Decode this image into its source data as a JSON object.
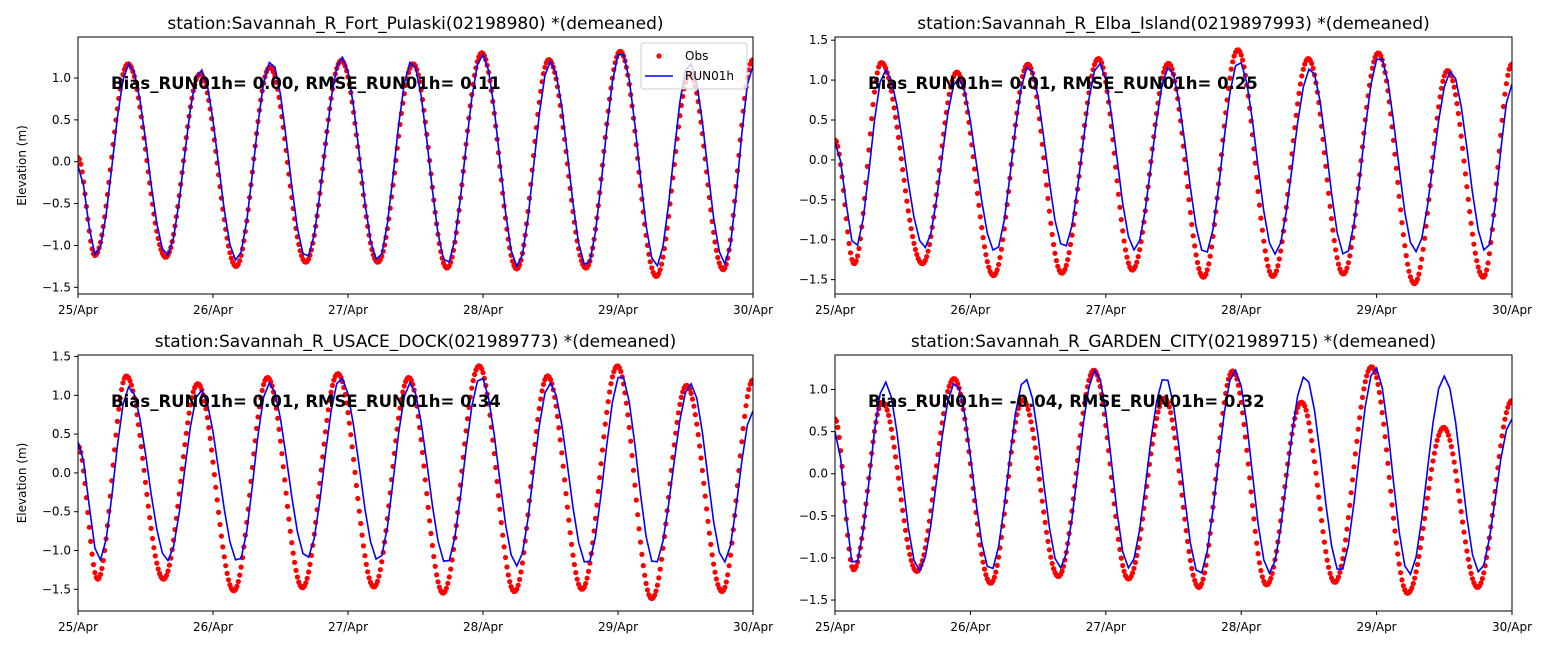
{
  "chart_data": [
    {
      "type": "line",
      "title": "station:Savannah_R_Fort_Pulaski(02198980) *(demeaned)",
      "xlabel": "",
      "ylabel": "Elevation (m)",
      "x_unit": "hours since 25/Apr 00:00",
      "xlim": [
        0,
        120
      ],
      "ylim": [
        -1.58,
        1.49
      ],
      "xticks": [
        "25/Apr",
        "26/Apr",
        "27/Apr",
        "28/Apr",
        "29/Apr",
        "30/Apr"
      ],
      "yticks": [
        "1.0",
        "0.5",
        "0.0",
        "−0.5",
        "−1.0",
        "−1.5"
      ],
      "ytick_values": [
        1.0,
        0.5,
        0.0,
        -0.5,
        -1.0,
        -1.5
      ],
      "annotation": "Bias_RUN01h=  0.00, RMSE_RUN01h=  0.11",
      "legend": {
        "placement": "top-right",
        "entries": [
          "Obs",
          "RUN01h"
        ]
      },
      "series": [
        {
          "name": "Obs",
          "style": "points",
          "color": "#ff0000",
          "extremes_t": [
            0,
            3.0,
            8.9,
            15.6,
            21.7,
            28.1,
            34.1,
            40.5,
            46.8,
            53.3,
            59.6,
            65.6,
            71.8,
            78.0,
            83.7,
            90.3,
            96.4,
            102.8,
            108.8,
            114.7,
            120
          ],
          "extremes_v": [
            0.05,
            -1.12,
            1.17,
            -1.14,
            1.05,
            -1.25,
            1.13,
            -1.2,
            1.21,
            -1.2,
            1.17,
            -1.27,
            1.3,
            -1.28,
            1.22,
            -1.27,
            1.32,
            -1.37,
            1.05,
            -1.29,
            1.22
          ]
        },
        {
          "name": "RUN01h",
          "style": "line",
          "color": "#0000ff",
          "extremes_t": [
            0,
            3.2,
            9.1,
            15.8,
            21.8,
            28.2,
            34.3,
            40.6,
            46.9,
            53.3,
            59.3,
            65.6,
            71.9,
            78.1,
            84.0,
            90.4,
            96.5,
            102.8,
            108.7,
            115.0,
            120
          ],
          "extremes_v": [
            -0.05,
            -1.12,
            1.17,
            -1.12,
            1.1,
            -1.18,
            1.2,
            -1.15,
            1.25,
            -1.18,
            1.2,
            -1.22,
            1.28,
            -1.25,
            1.2,
            -1.25,
            1.32,
            -1.25,
            1.18,
            -1.22,
            1.15
          ]
        }
      ]
    },
    {
      "type": "line",
      "title": "station:Savannah_R_Elba_Island(0219897993) *(demeaned)",
      "xlabel": "",
      "ylabel": "",
      "x_unit": "hours since 25/Apr 00:00",
      "xlim": [
        0,
        120
      ],
      "ylim": [
        -1.68,
        1.54
      ],
      "xticks": [
        "25/Apr",
        "26/Apr",
        "27/Apr",
        "28/Apr",
        "29/Apr",
        "30/Apr"
      ],
      "yticks": [
        "1.5",
        "1.0",
        "0.5",
        "0.0",
        "−0.5",
        "−1.0",
        "−1.5"
      ],
      "ytick_values": [
        1.5,
        1.0,
        0.5,
        0.0,
        -0.5,
        -1.0,
        -1.5
      ],
      "annotation": "Bias_RUN01h=  0.01, RMSE_RUN01h=  0.25",
      "series": [
        {
          "name": "Obs",
          "style": "points",
          "color": "#ff0000",
          "extremes_t": [
            0,
            3.4,
            8.2,
            15.5,
            21.6,
            28.1,
            34.2,
            40.2,
            46.7,
            52.7,
            59.1,
            65.3,
            71.4,
            77.6,
            83.9,
            90.1,
            96.3,
            102.7,
            108.6,
            114.9,
            120
          ],
          "extremes_v": [
            0.25,
            -1.3,
            1.22,
            -1.3,
            1.1,
            -1.45,
            1.2,
            -1.42,
            1.27,
            -1.38,
            1.21,
            -1.47,
            1.38,
            -1.46,
            1.27,
            -1.43,
            1.34,
            -1.55,
            1.12,
            -1.47,
            1.2
          ]
        },
        {
          "name": "RUN01h",
          "style": "line",
          "color": "#0000ff",
          "extremes_t": [
            0,
            3.6,
            8.9,
            15.9,
            21.8,
            28.4,
            34.3,
            40.6,
            46.8,
            53.1,
            59.2,
            65.6,
            71.6,
            78.0,
            84.3,
            90.4,
            96.5,
            102.9,
            109.2,
            115.4,
            120
          ],
          "extremes_v": [
            0.22,
            -1.1,
            1.13,
            -1.1,
            1.03,
            -1.15,
            1.17,
            -1.1,
            1.21,
            -1.13,
            1.16,
            -1.18,
            1.24,
            -1.18,
            1.15,
            -1.2,
            1.3,
            -1.15,
            1.11,
            -1.15,
            0.95
          ]
        }
      ]
    },
    {
      "type": "line",
      "title": "station:Savannah_R_USACE_DOCK(021989773) *(demeaned)",
      "xlabel": "",
      "ylabel": "Elevation (m)",
      "x_unit": "hours since 25/Apr 00:00",
      "xlim": [
        0,
        120
      ],
      "ylim": [
        -1.78,
        1.52
      ],
      "xticks": [
        "25/Apr",
        "26/Apr",
        "27/Apr",
        "28/Apr",
        "29/Apr",
        "30/Apr"
      ],
      "yticks": [
        "1.5",
        "1.0",
        "0.5",
        "0.0",
        "−0.5",
        "−1.0",
        "−1.5"
      ],
      "ytick_values": [
        1.5,
        1.0,
        0.5,
        0.0,
        -0.5,
        -1.0,
        -1.5
      ],
      "annotation": "Bias_RUN01h=  0.01, RMSE_RUN01h=  0.34",
      "series": [
        {
          "name": "Obs",
          "style": "points",
          "color": "#ff0000",
          "extremes_t": [
            0,
            3.5,
            8.6,
            15.2,
            21.3,
            27.7,
            33.7,
            39.9,
            46.2,
            52.6,
            58.8,
            64.9,
            71.3,
            77.6,
            83.5,
            89.6,
            95.9,
            102.0,
            108.2,
            114.5,
            120
          ],
          "extremes_v": [
            0.35,
            -1.37,
            1.25,
            -1.37,
            1.15,
            -1.52,
            1.23,
            -1.48,
            1.28,
            -1.47,
            1.23,
            -1.55,
            1.38,
            -1.53,
            1.25,
            -1.5,
            1.38,
            -1.62,
            1.13,
            -1.53,
            1.2
          ]
        },
        {
          "name": "RUN01h",
          "style": "line",
          "color": "#0000ff",
          "extremes_t": [
            0,
            3.8,
            9.1,
            15.9,
            21.8,
            28.5,
            34.0,
            40.7,
            46.7,
            53.4,
            59.0,
            65.5,
            71.6,
            78.0,
            83.9,
            90.5,
            96.5,
            102.5,
            108.9,
            114.9,
            120
          ],
          "extremes_v": [
            0.4,
            -1.13,
            1.11,
            -1.13,
            1.07,
            -1.15,
            1.16,
            -1.1,
            1.23,
            -1.13,
            1.16,
            -1.17,
            1.24,
            -1.2,
            1.16,
            -1.18,
            1.27,
            -1.18,
            1.15,
            -1.15,
            0.8
          ]
        }
      ]
    },
    {
      "type": "line",
      "title": "station:Savannah_R_GARDEN_CITY(021989715) *(demeaned)",
      "xlabel": "",
      "ylabel": "",
      "x_unit": "hours since 25/Apr 00:00",
      "xlim": [
        0,
        120
      ],
      "ylim": [
        -1.63,
        1.41
      ],
      "xticks": [
        "25/Apr",
        "26/Apr",
        "27/Apr",
        "28/Apr",
        "29/Apr",
        "30/Apr"
      ],
      "yticks": [
        "1.0",
        "0.5",
        "0.0",
        "−0.5",
        "−1.0",
        "−1.5"
      ],
      "ytick_values": [
        1.0,
        0.5,
        0.0,
        -0.5,
        -1.0,
        -1.5
      ],
      "annotation": "Bias_RUN01h= -0.04, RMSE_RUN01h=  0.32",
      "series": [
        {
          "name": "Obs",
          "style": "points",
          "color": "#ff0000",
          "extremes_t": [
            0,
            3.3,
            8.4,
            14.5,
            21.1,
            27.6,
            33.3,
            39.6,
            45.9,
            52.0,
            58.4,
            64.5,
            70.5,
            76.5,
            82.7,
            88.6,
            95.1,
            101.5,
            107.9,
            113.9,
            120
          ],
          "extremes_v": [
            0.65,
            -1.14,
            0.85,
            -1.16,
            1.13,
            -1.3,
            0.88,
            -1.22,
            1.23,
            -1.25,
            0.9,
            -1.35,
            1.22,
            -1.32,
            0.85,
            -1.29,
            1.27,
            -1.42,
            0.55,
            -1.35,
            0.87
          ]
        },
        {
          "name": "RUN01h",
          "style": "line",
          "color": "#0000ff",
          "extremes_t": [
            0,
            3.4,
            8.9,
            14.9,
            21.3,
            27.6,
            33.7,
            39.9,
            46.2,
            52.1,
            58.5,
            64.6,
            70.9,
            77.0,
            83.3,
            89.5,
            95.8,
            101.8,
            108.0,
            114.2,
            120
          ],
          "extremes_v": [
            0.5,
            -1.1,
            1.09,
            -1.15,
            1.08,
            -1.15,
            1.13,
            -1.12,
            1.23,
            -1.12,
            1.15,
            -1.2,
            1.23,
            -1.18,
            1.16,
            -1.17,
            1.26,
            -1.2,
            1.16,
            -1.17,
            0.65
          ]
        }
      ]
    }
  ]
}
